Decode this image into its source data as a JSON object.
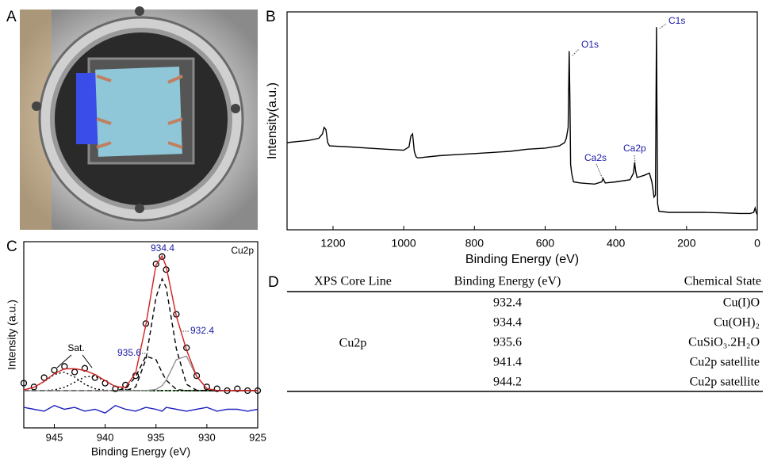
{
  "panel_labels": [
    "A",
    "B",
    "C",
    "D"
  ],
  "chart_data": [
    {
      "type": "line",
      "xlabel": "Binding Energy (eV)",
      "ylabel": "Intensity(a.u.)",
      "xlim": [
        1330,
        0
      ],
      "ylim": [
        0,
        100
      ],
      "xticks": [
        1200,
        1000,
        800,
        600,
        400,
        200,
        0
      ],
      "annotations": [
        "O1s",
        "C1s",
        "Ca2s",
        "Ca2p"
      ],
      "x": [
        1330,
        1300,
        1270,
        1240,
        1230,
        1225,
        1220,
        1215,
        1210,
        1150,
        1100,
        1050,
        1000,
        985,
        980,
        975,
        970,
        965,
        960,
        900,
        850,
        800,
        750,
        700,
        650,
        600,
        560,
        545,
        540,
        535,
        532,
        530,
        528,
        525,
        520,
        500,
        460,
        440,
        436,
        430,
        400,
        360,
        350,
        347,
        344,
        340,
        320,
        305,
        298,
        292,
        288,
        286,
        285,
        284,
        282,
        278,
        250,
        200,
        150,
        100,
        50,
        20,
        10,
        6,
        3,
        0
      ],
      "series": [
        {
          "color": "#000000",
          "values": [
            40,
            40.5,
            41,
            42,
            44,
            47,
            46,
            40,
            38.5,
            38,
            37.5,
            37,
            36.5,
            38,
            43,
            44,
            36,
            33.5,
            33,
            34,
            34.5,
            35,
            35.5,
            36,
            37,
            37.5,
            38.5,
            40,
            42,
            47,
            82,
            60,
            30,
            26,
            22,
            21.5,
            21,
            22,
            23.5,
            21.5,
            22,
            23,
            26,
            31,
            27,
            24,
            25,
            26,
            22,
            15,
            16,
            70,
            93,
            60,
            12,
            8.5,
            8,
            8,
            8,
            7.8,
            7.5,
            7.5,
            8,
            10,
            8,
            7
          ]
        }
      ]
    },
    {
      "type": "line",
      "title": "Cu2p",
      "xlabel": "Binding Energy (eV)",
      "ylabel": "Intensity (a.u.)",
      "xlim": [
        948,
        925
      ],
      "ylim": [
        0,
        100
      ],
      "xticks": [
        945,
        940,
        935,
        930,
        925
      ],
      "annotations": [
        "934.4",
        "935.6",
        "932.4",
        "Sat."
      ],
      "x": [
        948,
        947,
        946,
        945,
        944,
        943,
        942,
        941,
        940,
        939,
        938,
        937,
        936,
        935,
        934.4,
        934,
        933,
        932,
        931,
        930,
        929,
        928,
        927,
        926,
        925
      ],
      "series": [
        {
          "color": "#00a000",
          "dash": "dash",
          "values": [
            20,
            20,
            20,
            20,
            20,
            20,
            20,
            20,
            20,
            20,
            20,
            20,
            20,
            20,
            20,
            20,
            20,
            20,
            20,
            20,
            20,
            20,
            20,
            20,
            20
          ]
        },
        {
          "color": "#2020c0",
          "values": [
            11,
            10,
            9,
            12,
            10,
            11,
            9,
            10,
            8,
            12,
            10,
            9,
            11,
            10,
            9,
            11,
            10,
            9,
            10,
            11,
            9,
            10,
            10,
            9,
            10
          ]
        },
        {
          "color": "#000000",
          "dash": "dot",
          "values": [
            20.4,
            21.8,
            24.9,
            28.7,
            29.9,
            27.3,
            23.4,
            21,
            20.2,
            20,
            20,
            20,
            20,
            20,
            20,
            20,
            20,
            20,
            20,
            20,
            20,
            20,
            20,
            20,
            20
          ]
        },
        {
          "color": "#000000",
          "dash": "dot",
          "values": [
            20,
            20,
            20.1,
            20.4,
            21.8,
            24.5,
            27.4,
            27.7,
            25.2,
            22.2,
            20.6,
            20.1,
            20,
            20,
            20,
            20,
            20,
            20,
            20,
            20,
            20,
            20,
            20,
            20,
            20
          ]
        },
        {
          "color": "#000000",
          "dash": "dash",
          "values": [
            20,
            20,
            20,
            20,
            20,
            20,
            20,
            20,
            20,
            20,
            21.1,
            27.5,
            38.5,
            36.7,
            29.7,
            25.6,
            20.7,
            20,
            20,
            20,
            20,
            20,
            20,
            20,
            20
          ]
        },
        {
          "color": "#000000",
          "dash": "dash",
          "values": [
            20,
            20,
            20,
            20,
            20,
            20,
            20,
            20,
            20,
            20,
            20,
            22,
            36.7,
            70,
            80,
            75.4,
            42.5,
            23.4,
            20.2,
            20,
            20,
            20,
            20,
            20,
            20
          ]
        },
        {
          "color": "#909090",
          "values": [
            20,
            20,
            20,
            20,
            20,
            20,
            20,
            20,
            20,
            20,
            20,
            20,
            20,
            20.7,
            22.7,
            25.6,
            36.7,
            38.5,
            27.5,
            21.1,
            20.1,
            20,
            20,
            20,
            20
          ]
        },
        {
          "color": "#000000",
          "marker": "circle",
          "values": [
            24,
            22,
            27,
            31,
            33,
            30,
            32,
            27,
            24,
            21,
            23,
            28,
            56,
            88,
            92,
            85,
            61,
            43,
            28,
            22,
            21,
            20,
            21,
            20,
            20
          ]
        },
        {
          "color": "#d42020",
          "values": [
            20.4,
            21.8,
            25,
            29.1,
            31.7,
            31.8,
            30.8,
            28.7,
            25.4,
            22.2,
            21.7,
            29.6,
            55.2,
            87.4,
            92.4,
            86.6,
            59.9,
            41.9,
            27.7,
            21.1,
            20.1,
            20,
            20,
            20,
            20
          ]
        }
      ]
    }
  ],
  "table": {
    "header": [
      "XPS Core Line",
      "Binding Energy (eV)",
      "Chemical State"
    ],
    "core_line": "Cu2p",
    "rows": [
      [
        932.4,
        "Cu(I)O"
      ],
      [
        934.4,
        "Cu(OH)₂"
      ],
      [
        935.6,
        "CuSiO₃.2H₂O"
      ],
      [
        941.4,
        "Cu2p satellite"
      ],
      [
        944.2,
        "Cu2p satellite"
      ]
    ]
  }
}
